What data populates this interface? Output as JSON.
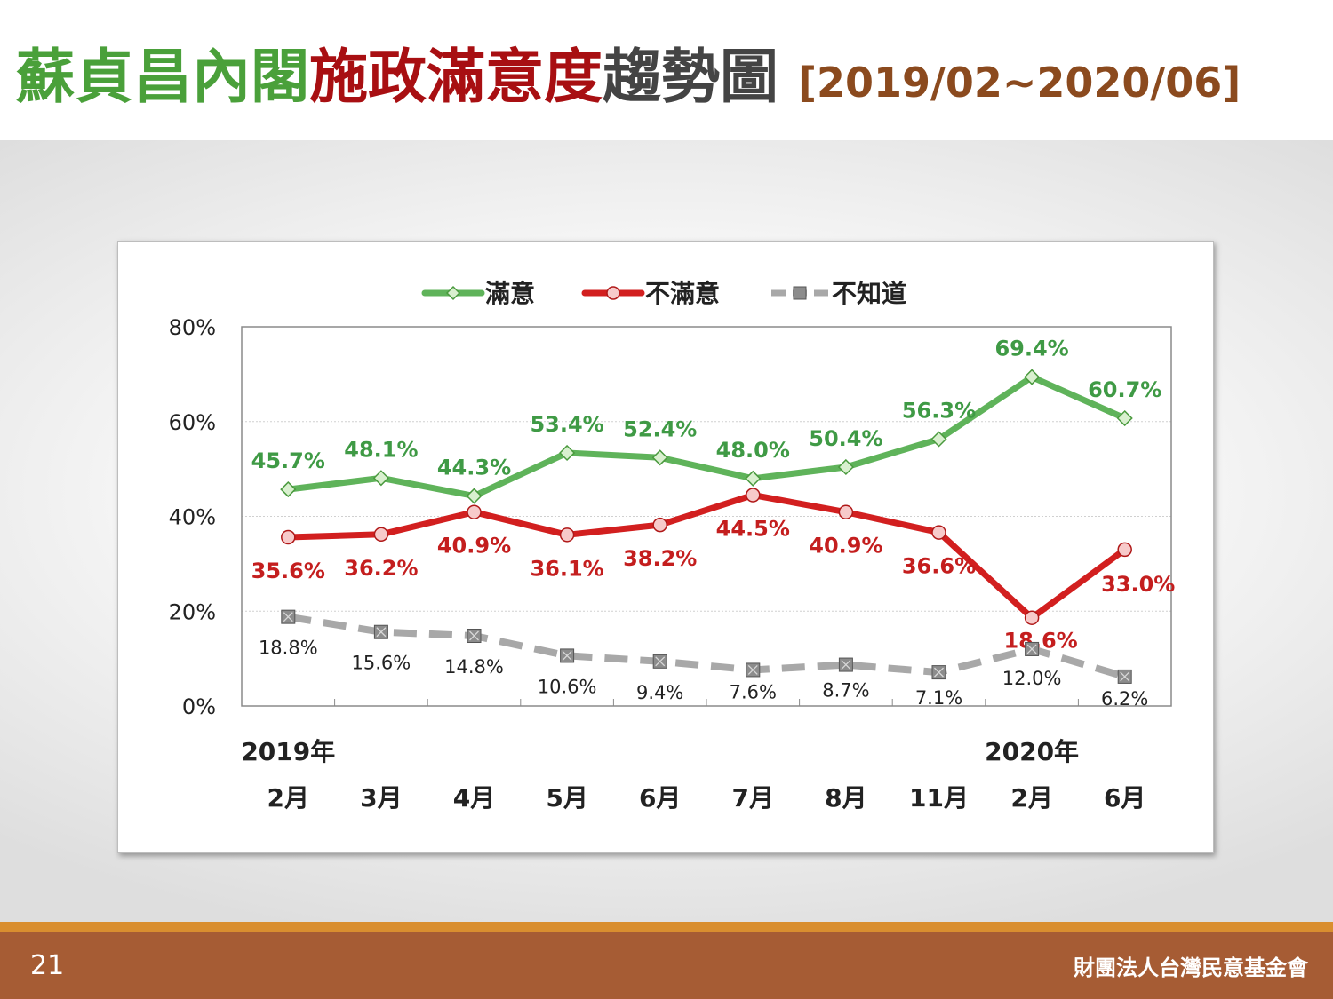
{
  "slide": {
    "title_parts": [
      "蘇貞昌內閣",
      "施政滿意度",
      "趨勢圖",
      "[2019/02~2020/06]"
    ],
    "page_number": "21",
    "organization": "財團法人台灣民意基金會",
    "colors": {
      "title_green": "#4aa03a",
      "title_red": "#a80f12",
      "title_gray": "#444444",
      "title_brown": "#8b4a1e",
      "footer": "#a65c34",
      "footer_stripe": "#d98e2f"
    }
  },
  "chart_data": {
    "type": "line",
    "categories": [
      "2月",
      "3月",
      "4月",
      "5月",
      "6月",
      "7月",
      "8月",
      "11月",
      "2月",
      "6月"
    ],
    "year_labels": [
      {
        "index": 0,
        "label": "2019年"
      },
      {
        "index": 8,
        "label": "2020年"
      }
    ],
    "ylim": [
      0,
      80
    ],
    "yticks": [
      0,
      20,
      40,
      60,
      80
    ],
    "ytick_labels": [
      "0%",
      "20%",
      "40%",
      "60%",
      "80%"
    ],
    "grid": true,
    "legend_position": "top-center",
    "series": [
      {
        "name": "滿意",
        "color": "#5fb35a",
        "marker": "diamond",
        "values": [
          45.7,
          48.1,
          44.3,
          53.4,
          52.4,
          48.0,
          50.4,
          56.3,
          69.4,
          60.7
        ],
        "labels": [
          "45.7%",
          "48.1%",
          "44.3%",
          "53.4%",
          "52.4%",
          "48.0%",
          "50.4%",
          "56.3%",
          "69.4%",
          "60.7%"
        ]
      },
      {
        "name": "不滿意",
        "color": "#d21f1f",
        "marker": "circle",
        "values": [
          35.6,
          36.2,
          40.9,
          36.1,
          38.2,
          44.5,
          40.9,
          36.6,
          18.6,
          33.0
        ],
        "labels": [
          "35.6%",
          "36.2%",
          "40.9%",
          "36.1%",
          "38.2%",
          "44.5%",
          "40.9%",
          "36.6%",
          "18.6%",
          "33.0%"
        ]
      },
      {
        "name": "不知道",
        "color": "#a8a8a8",
        "marker": "square",
        "values": [
          18.8,
          15.6,
          14.8,
          10.6,
          9.4,
          7.6,
          8.7,
          7.1,
          12.0,
          6.2
        ],
        "labels": [
          "18.8%",
          "15.6%",
          "14.8%",
          "10.6%",
          "9.4%",
          "7.6%",
          "8.7%",
          "7.1%",
          "12.0%",
          "6.2%"
        ]
      }
    ]
  }
}
